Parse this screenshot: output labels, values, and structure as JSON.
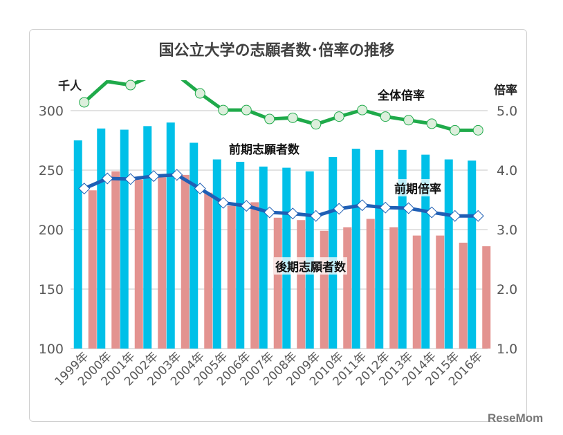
{
  "chart_data": {
    "type": "bar+line",
    "title": "国公立大学の志願者数･倍率の推移",
    "y_left_label": "千人",
    "y_right_label": "倍率",
    "ylim_left": [
      100,
      300
    ],
    "ylim_right": [
      1.0,
      5.0
    ],
    "y_left_ticks": [
      "100",
      "150",
      "200",
      "250",
      "300"
    ],
    "y_right_ticks": [
      "1.0",
      "2.0",
      "3.0",
      "4.0",
      "5.0"
    ],
    "grid": true,
    "categories": [
      "1999年",
      "2000年",
      "2001年",
      "2002年",
      "2003年",
      "2004年",
      "2005年",
      "2006年",
      "2007年",
      "2008年",
      "2009年",
      "2010年",
      "2011年",
      "2012年",
      "2013年",
      "2014年",
      "2015年",
      "2016年"
    ],
    "series": [
      {
        "name": "前期志願者数",
        "type": "bar",
        "axis": "left",
        "color": "#00c0e8",
        "values": [
          275,
          285,
          284,
          287,
          290,
          273,
          259,
          257,
          253,
          252,
          249,
          261,
          268,
          267,
          267,
          263,
          259,
          258
        ]
      },
      {
        "name": "後期志願者数",
        "type": "bar",
        "axis": "left",
        "color": "#e39390",
        "values": [
          233,
          249,
          242,
          244,
          246,
          231,
          220,
          223,
          210,
          208,
          199,
          202,
          209,
          202,
          195,
          195,
          189,
          186
        ]
      },
      {
        "name": "全体倍率",
        "type": "line",
        "axis": "right",
        "color": "#1faa4a",
        "values": [
          5.14,
          5.49,
          5.43,
          5.6,
          5.6,
          5.29,
          5.01,
          5.01,
          4.86,
          4.88,
          4.77,
          4.9,
          5.01,
          4.9,
          4.84,
          4.78,
          4.67,
          4.67
        ]
      },
      {
        "name": "前期倍率",
        "type": "line",
        "axis": "right",
        "color": "#1f5fb5",
        "values": [
          3.69,
          3.86,
          3.85,
          3.9,
          3.92,
          3.69,
          3.45,
          3.4,
          3.29,
          3.27,
          3.23,
          3.35,
          3.41,
          3.37,
          3.36,
          3.29,
          3.23,
          3.23
        ]
      }
    ]
  },
  "logo": "ReseMom"
}
